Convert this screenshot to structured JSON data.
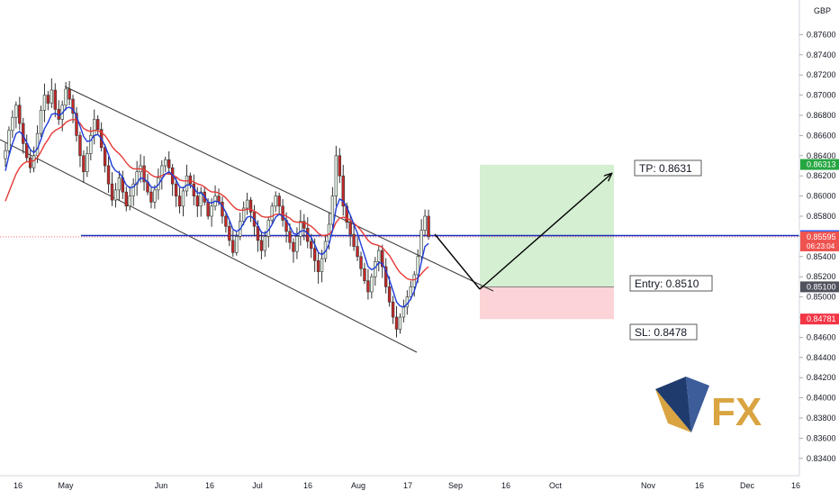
{
  "chart_data": {
    "type": "candlestick",
    "currency": "GBP",
    "y_ticks": [
      0.876,
      0.874,
      0.872,
      0.87,
      0.868,
      0.866,
      0.864,
      0.862,
      0.86,
      0.858,
      0.856,
      0.854,
      0.852,
      0.85,
      0.848,
      0.846,
      0.844,
      0.842,
      0.84,
      0.838,
      0.836,
      0.834
    ],
    "ylim": [
      0.8327,
      0.878
    ],
    "x_ticks": [
      "16",
      "May",
      "Jun",
      "16",
      "Jul",
      "16",
      "Aug",
      "17",
      "Sep",
      "16",
      "Oct",
      "Nov",
      "16",
      "Dec",
      "16"
    ],
    "price_badges": [
      {
        "value": "0.86313",
        "color": "#26a641"
      },
      {
        "value": "0.85608",
        "color": "#2962ff"
      },
      {
        "value": "0.85595",
        "sub": "06:23:04",
        "color": "#ef5350"
      },
      {
        "value": "0.85100",
        "color": "#50535e"
      },
      {
        "value": "0.84781",
        "color": "#f23645"
      }
    ],
    "levels": {
      "tp": 0.8631,
      "entry": 0.851,
      "sl": 0.8478,
      "current": 0.85595,
      "hline": 0.85608
    },
    "labels": {
      "tp": "TP: 0.8631",
      "entry": "Entry: 0.8510",
      "sl": "SL: 0.8478"
    },
    "candle_closes": [
      0.8645,
      0.8665,
      0.8678,
      0.869,
      0.8672,
      0.8652,
      0.8638,
      0.8628,
      0.864,
      0.8662,
      0.8685,
      0.87,
      0.8692,
      0.8705,
      0.8686,
      0.8676,
      0.869,
      0.8706,
      0.8696,
      0.8682,
      0.866,
      0.864,
      0.8624,
      0.8642,
      0.866,
      0.8676,
      0.8666,
      0.8648,
      0.863,
      0.8612,
      0.8596,
      0.8606,
      0.8618,
      0.8604,
      0.859,
      0.86,
      0.8612,
      0.8624,
      0.863,
      0.8614,
      0.8604,
      0.8594,
      0.8606,
      0.8618,
      0.863,
      0.8636,
      0.8628,
      0.8612,
      0.86,
      0.859,
      0.8605,
      0.862,
      0.8612,
      0.86,
      0.859,
      0.8604,
      0.8594,
      0.858,
      0.859,
      0.86,
      0.8594,
      0.858,
      0.857,
      0.8556,
      0.8544,
      0.856,
      0.8575,
      0.8588,
      0.8596,
      0.8584,
      0.857,
      0.8556,
      0.8546,
      0.856,
      0.8576,
      0.859,
      0.86,
      0.859,
      0.8576,
      0.8565,
      0.8554,
      0.8545,
      0.856,
      0.8575,
      0.8568,
      0.8555,
      0.8548,
      0.8536,
      0.8525,
      0.8538,
      0.8555,
      0.8572,
      0.86,
      0.864,
      0.862,
      0.859,
      0.8574,
      0.8562,
      0.855,
      0.854,
      0.8528,
      0.8516,
      0.8505,
      0.852,
      0.8535,
      0.8546,
      0.853,
      0.851,
      0.8495,
      0.848,
      0.8468,
      0.848,
      0.849,
      0.85,
      0.851,
      0.8522,
      0.854,
      0.8566,
      0.858,
      0.856
    ],
    "ma_blue": [
      0.8625,
      0.864,
      0.8652,
      0.8662,
      0.8664,
      0.866,
      0.8653,
      0.8646,
      0.8643,
      0.8647,
      0.8656,
      0.8667,
      0.8673,
      0.8681,
      0.8682,
      0.868,
      0.8682,
      0.8687,
      0.8688,
      0.8686,
      0.8679,
      0.8669,
      0.8659,
      0.8654,
      0.8655,
      0.866,
      0.8661,
      0.8657,
      0.865,
      0.8641,
      0.863,
      0.8625,
      0.8623,
      0.8618,
      0.8611,
      0.8608,
      0.8609,
      0.8613,
      0.8618,
      0.8617,
      0.8614,
      0.8609,
      0.8608,
      0.8611,
      0.8617,
      0.8622,
      0.8624,
      0.8621,
      0.8616,
      0.8609,
      0.8608,
      0.8611,
      0.8611,
      0.8608,
      0.8603,
      0.8603,
      0.86,
      0.8594,
      0.8593,
      0.8595,
      0.8594,
      0.859,
      0.8584,
      0.8576,
      0.8567,
      0.8565,
      0.8567,
      0.8573,
      0.8579,
      0.858,
      0.8577,
      0.8571,
      0.8564,
      0.8563,
      0.8566,
      0.8572,
      0.8579,
      0.8582,
      0.858,
      0.8576,
      0.857,
      0.8563,
      0.8562,
      0.8565,
      0.8566,
      0.8563,
      0.8559,
      0.8552,
      0.8544,
      0.8542,
      0.8545,
      0.8552,
      0.8566,
      0.8588,
      0.8597,
      0.8595,
      0.8589,
      0.8581,
      0.8572,
      0.8563,
      0.8552,
      0.8541,
      0.853,
      0.8527,
      0.8529,
      0.8534,
      0.8533,
      0.8526,
      0.8517,
      0.8506,
      0.8495,
      0.8491,
      0.849,
      0.8493,
      0.8498,
      0.8506,
      0.8518,
      0.8535,
      0.855,
      0.8553
    ],
    "ma_red": [
      0.8595,
      0.8604,
      0.8613,
      0.8622,
      0.8628,
      0.8632,
      0.8634,
      0.8634,
      0.8635,
      0.8638,
      0.8644,
      0.8651,
      0.8656,
      0.8662,
      0.8665,
      0.8667,
      0.8669,
      0.8673,
      0.8675,
      0.8676,
      0.8675,
      0.8672,
      0.8667,
      0.8665,
      0.8664,
      0.8665,
      0.8665,
      0.8663,
      0.866,
      0.8655,
      0.8649,
      0.8645,
      0.8642,
      0.8638,
      0.8633,
      0.8629,
      0.8627,
      0.8627,
      0.8627,
      0.8626,
      0.8624,
      0.8621,
      0.8619,
      0.8619,
      0.862,
      0.8622,
      0.8622,
      0.8621,
      0.8619,
      0.8616,
      0.8615,
      0.8615,
      0.8615,
      0.8614,
      0.8612,
      0.8611,
      0.8609,
      0.8606,
      0.8604,
      0.8604,
      0.8603,
      0.8601,
      0.8598,
      0.8594,
      0.859,
      0.8587,
      0.8586,
      0.8586,
      0.8587,
      0.8587,
      0.8585,
      0.8583,
      0.858,
      0.8579,
      0.8579,
      0.858,
      0.8582,
      0.8582,
      0.8582,
      0.858,
      0.8578,
      0.8575,
      0.8574,
      0.8574,
      0.8574,
      0.8572,
      0.857,
      0.8567,
      0.8563,
      0.8561,
      0.8561,
      0.8562,
      0.8566,
      0.8574,
      0.8578,
      0.8579,
      0.8578,
      0.8576,
      0.8573,
      0.857,
      0.8566,
      0.8561,
      0.8556,
      0.8553,
      0.8552,
      0.8551,
      0.8549,
      0.8545,
      0.8541,
      0.8535,
      0.8529,
      0.8524,
      0.8521,
      0.8518,
      0.8517,
      0.8517,
      0.8519,
      0.8523,
      0.8527,
      0.853
    ]
  },
  "logo": {
    "text": "FX",
    "colors": [
      "#1f3b6e",
      "#d9a441"
    ]
  }
}
